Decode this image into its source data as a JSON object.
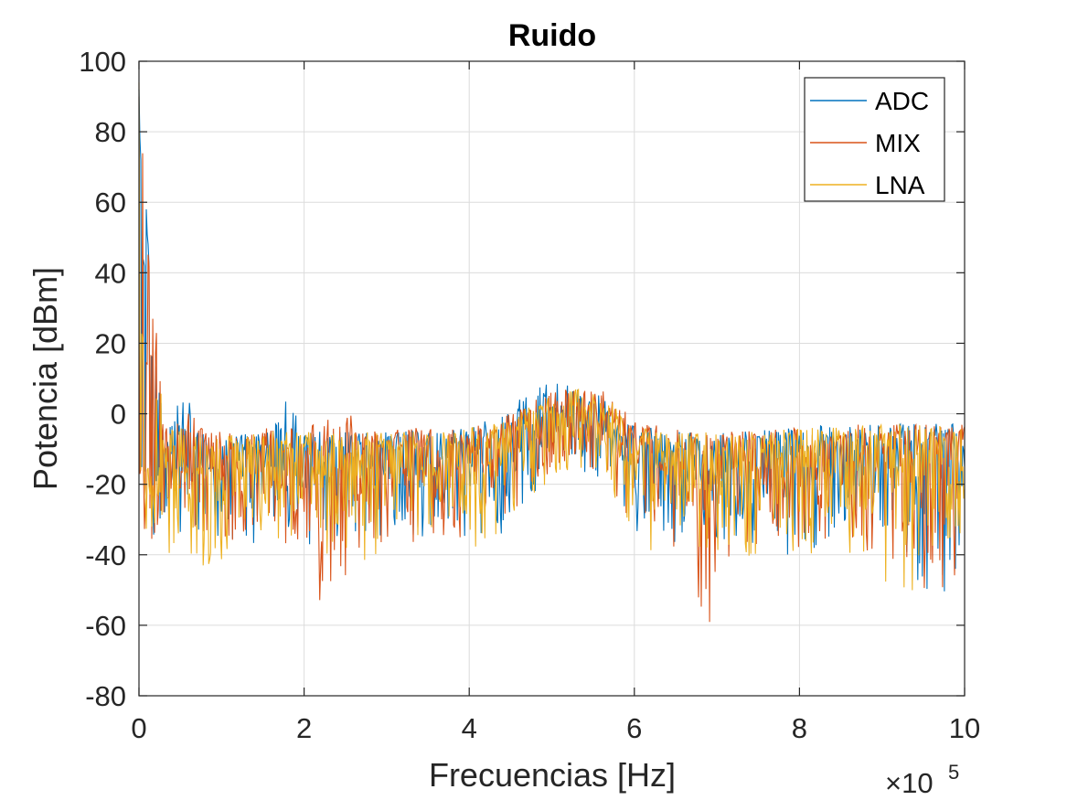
{
  "chart_data": {
    "type": "line",
    "title": "Ruido",
    "xlabel": "Frecuencias [Hz]",
    "ylabel": "Potencia [dBm]",
    "x_multiplier": "×10",
    "x_multiplier_exponent": "5",
    "xlim": [
      0,
      10
    ],
    "ylim": [
      -80,
      100
    ],
    "x_ticks": [
      "0",
      "2",
      "4",
      "6",
      "8",
      "10"
    ],
    "y_ticks": [
      "100",
      "80",
      "60",
      "40",
      "20",
      "0",
      "-20",
      "-40",
      "-60",
      "-80"
    ],
    "grid": true,
    "legend_position": "top-right",
    "series": [
      {
        "name": "ADC",
        "color": "#0072BD",
        "x": [
          0,
          0.3,
          0.62,
          0.8,
          1.2,
          1.6,
          1.8,
          2.0,
          2.4,
          2.8,
          3.2,
          3.6,
          4.0,
          4.4,
          4.7,
          5.0,
          5.3,
          5.6,
          5.8,
          6.0,
          6.4,
          6.8,
          7.2,
          7.6,
          8.0,
          8.4,
          8.8,
          9.2,
          9.6,
          10.0
        ],
        "upper": [
          92,
          -5,
          10,
          -6,
          -6,
          -5,
          6,
          -5,
          -5,
          -5,
          -5,
          -4,
          -4,
          0,
          6,
          9,
          8,
          5,
          0,
          -3,
          -5,
          -5,
          -5,
          -4,
          -4,
          -3,
          -3,
          -3,
          -2,
          -2
        ],
        "lower": [
          -35,
          -40,
          -30,
          -38,
          -36,
          -38,
          -35,
          -40,
          -37,
          -38,
          -37,
          -38,
          -35,
          -35,
          -25,
          -18,
          -15,
          -20,
          -28,
          -35,
          -36,
          -38,
          -36,
          -40,
          -40,
          -38,
          -40,
          -42,
          -55,
          -45
        ],
        "center": [
          -15,
          -15,
          -14,
          -15,
          -15,
          -15,
          -15,
          -15,
          -15,
          -15,
          -15,
          -15,
          -14,
          -12,
          -8,
          -4,
          -3,
          -5,
          -9,
          -13,
          -14,
          -15,
          -15,
          -15,
          -15,
          -15,
          -15,
          -15,
          -14,
          -14
        ]
      },
      {
        "name": "MIX",
        "color": "#D95319",
        "x": [
          0,
          0.3,
          0.62,
          0.8,
          1.2,
          1.6,
          2.0,
          2.05,
          2.4,
          2.8,
          3.2,
          3.6,
          4.0,
          4.4,
          4.7,
          5.0,
          5.3,
          5.6,
          5.8,
          6.0,
          6.4,
          6.95,
          7.2,
          7.6,
          8.0,
          8.4,
          8.8,
          9.2,
          9.6,
          10.0
        ],
        "upper": [
          90,
          -4,
          2,
          -5,
          -5,
          -4,
          -4,
          -4,
          3,
          -5,
          -4,
          -4,
          -4,
          -1,
          3,
          7,
          8,
          7,
          3,
          -2,
          -4,
          -5,
          -5,
          -4,
          -4,
          -3,
          -3,
          -3,
          -3,
          -3
        ],
        "lower": [
          -34,
          -38,
          -32,
          -36,
          -36,
          -38,
          -42,
          -60,
          -52,
          -38,
          -37,
          -38,
          -35,
          -33,
          -24,
          -17,
          -14,
          -17,
          -25,
          -33,
          -36,
          -62,
          -40,
          -40,
          -38,
          -38,
          -40,
          -42,
          -52,
          -50
        ],
        "center": [
          -15,
          -15,
          -15,
          -15,
          -15,
          -15,
          -15,
          -15,
          -15,
          -15,
          -15,
          -15,
          -14,
          -12,
          -8,
          -4,
          -2,
          -3,
          -7,
          -12,
          -14,
          -15,
          -15,
          -15,
          -15,
          -15,
          -15,
          -15,
          -14,
          -14
        ]
      },
      {
        "name": "LNA",
        "color": "#EDB120",
        "x": [
          0,
          0.3,
          0.6,
          0.8,
          1.2,
          1.6,
          2.0,
          2.4,
          2.8,
          3.2,
          3.6,
          4.0,
          4.4,
          4.7,
          5.0,
          5.3,
          5.6,
          5.8,
          6.0,
          6.4,
          6.8,
          7.2,
          7.6,
          8.0,
          8.4,
          8.8,
          9.2,
          9.6,
          10.0
        ],
        "upper": [
          94,
          -5,
          -3,
          -6,
          -6,
          -5,
          -5,
          -5,
          -5,
          -5,
          -5,
          -4,
          -2,
          2,
          5,
          7,
          6,
          2,
          -3,
          -5,
          -5,
          -5,
          -5,
          -4,
          -4,
          -3,
          -3,
          -3,
          -3
        ],
        "lower": [
          -30,
          -40,
          -42,
          -45,
          -43,
          -40,
          -40,
          -40,
          -42,
          -40,
          -38,
          -40,
          -36,
          -26,
          -18,
          -15,
          -18,
          -26,
          -40,
          -38,
          -40,
          -40,
          -42,
          -40,
          -40,
          -42,
          -58,
          -40,
          -38
        ],
        "center": [
          -15,
          -15,
          -15,
          -15,
          -15,
          -15,
          -15,
          -15,
          -15,
          -15,
          -15,
          -15,
          -12,
          -8,
          -4,
          -2,
          -4,
          -8,
          -13,
          -14,
          -15,
          -15,
          -15,
          -15,
          -15,
          -15,
          -15,
          -14,
          -14
        ]
      }
    ]
  }
}
